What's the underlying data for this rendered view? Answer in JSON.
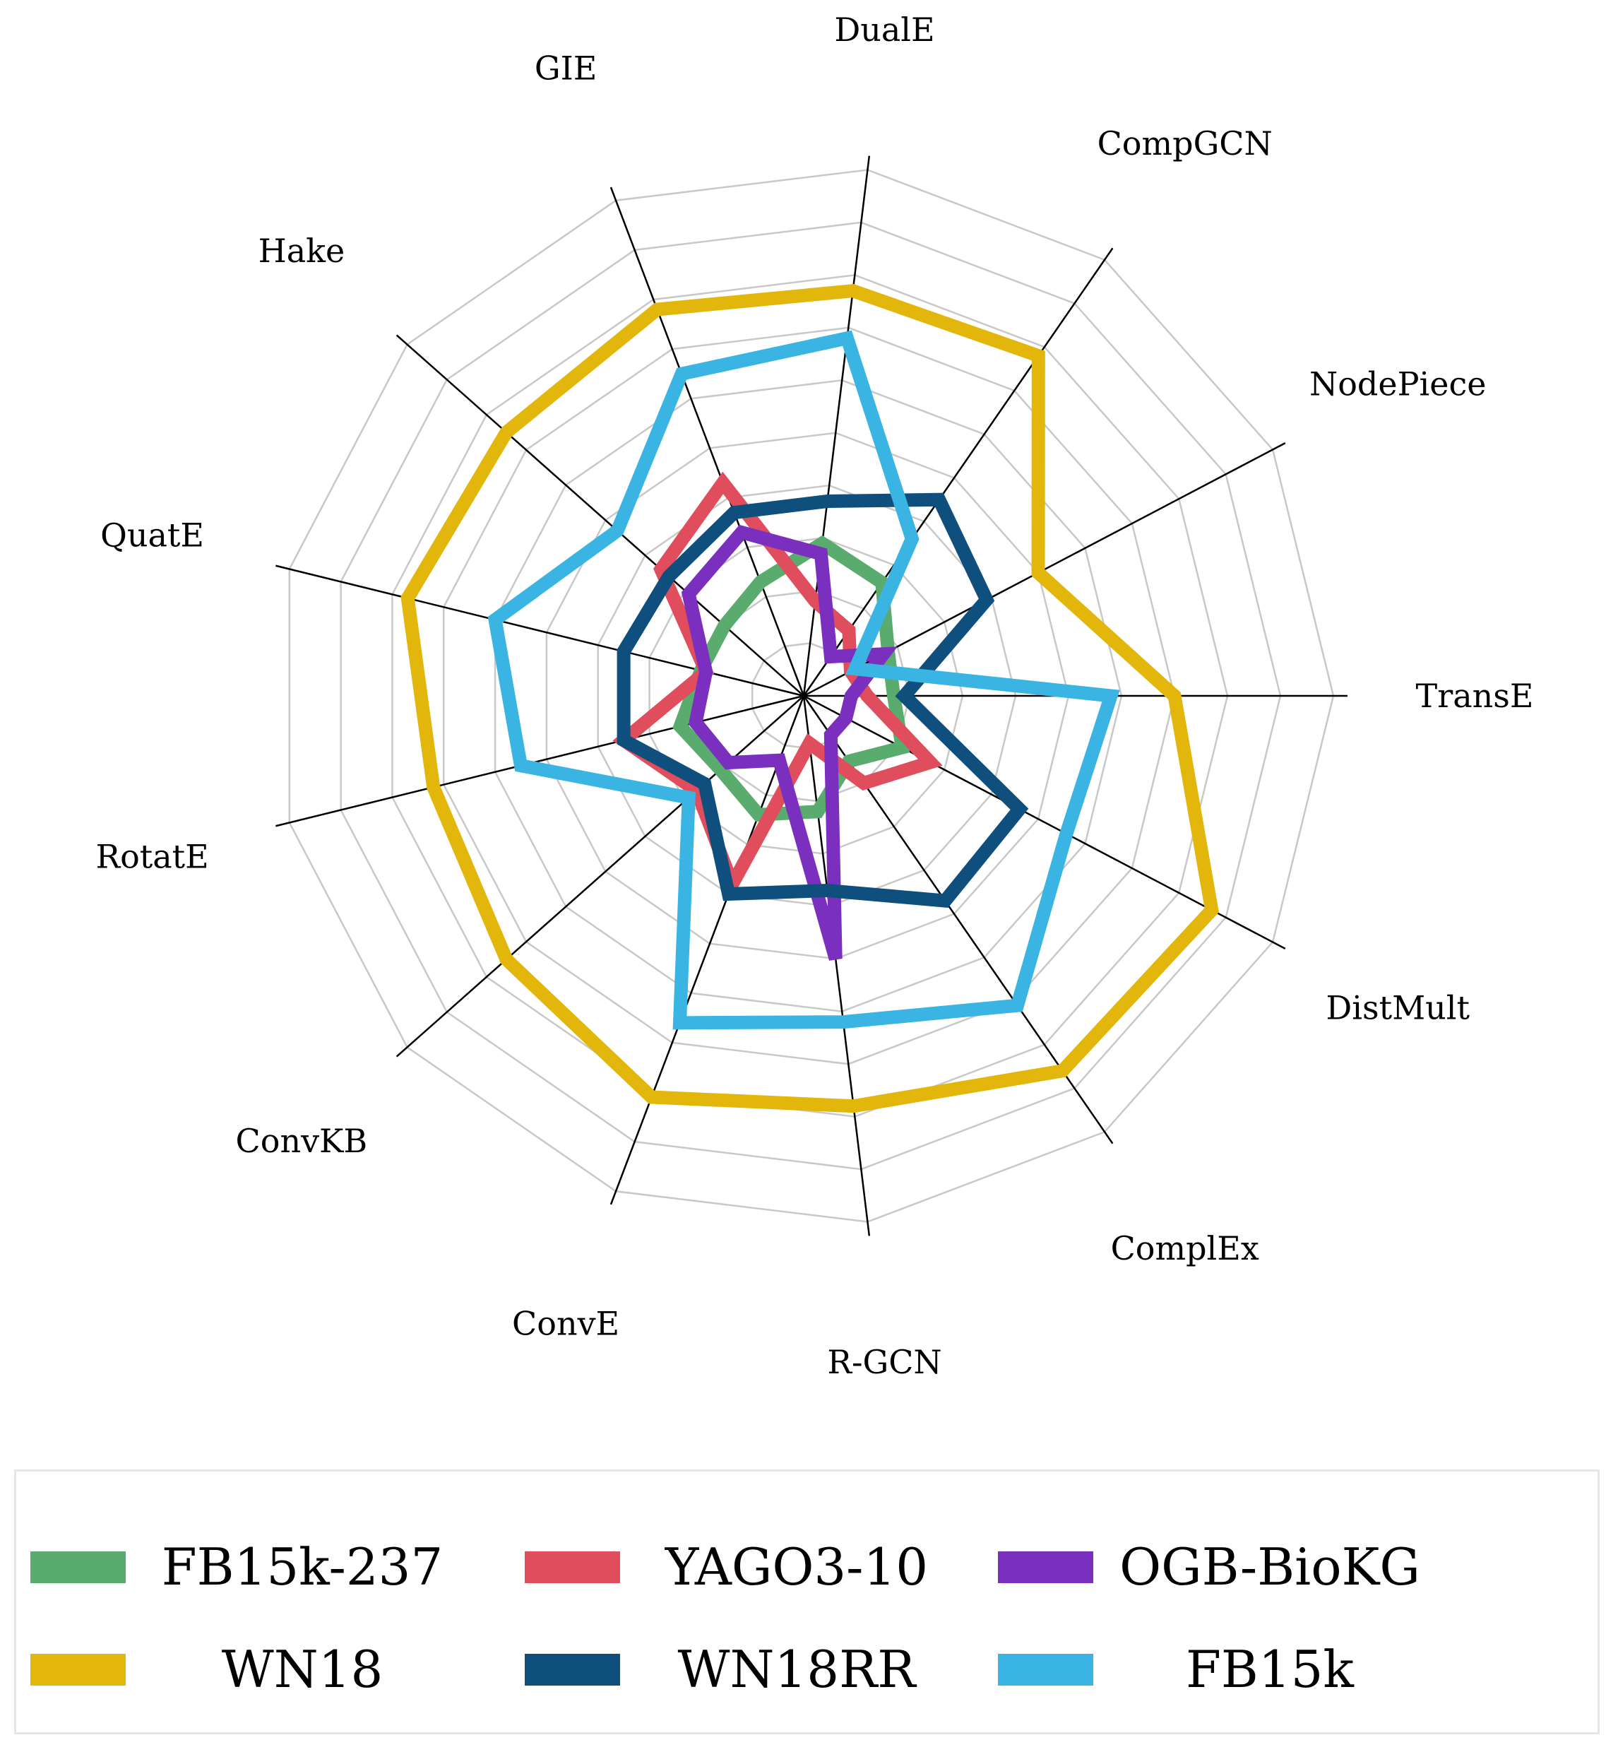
{
  "chart_data": {
    "type": "radar",
    "categories": [
      "TransE",
      "DistMult",
      "ComplEx",
      "R-GCN",
      "ConvE",
      "ConvKB",
      "RotatE",
      "QuatE",
      "Hake",
      "GIE",
      "DualE",
      "CompGCN",
      "NodePiece"
    ],
    "rlim": [
      0,
      10
    ],
    "grid": true,
    "legend_position": "bottom",
    "series": [
      {
        "name": "FB15k-237",
        "color": "#5aab6e",
        "values": [
          1.7,
          2.1,
          1.5,
          2.2,
          2.4,
          2.1,
          2.4,
          2.0,
          2.0,
          2.3,
          2.9,
          2.6,
          1.8
        ]
      },
      {
        "name": "YAGO3-10",
        "color": "#e04d5c",
        "values": [
          1.2,
          2.7,
          2.0,
          0.9,
          3.8,
          2.7,
          3.5,
          1.9,
          3.6,
          4.3,
          1.8,
          1.5,
          1.0
        ]
      },
      {
        "name": "OGB-BioKG",
        "color": "#7b2fbf",
        "values": [
          0.9,
          0.9,
          0.9,
          5.0,
          1.3,
          1.9,
          2.1,
          1.9,
          2.9,
          3.3,
          2.7,
          0.9,
          1.7
        ]
      },
      {
        "name": "WN18",
        "color": "#e2b60a",
        "values": [
          7.0,
          8.7,
          8.6,
          7.8,
          8.1,
          7.5,
          7.2,
          7.7,
          7.5,
          7.8,
          7.7,
          7.8,
          5.0
        ]
      },
      {
        "name": "WN18RR",
        "color": "#0f4f7d",
        "values": [
          1.9,
          4.6,
          4.7,
          3.7,
          4.0,
          2.5,
          3.5,
          3.5,
          3.4,
          3.7,
          3.7,
          4.5,
          3.9
        ]
      },
      {
        "name": "FB15k",
        "color": "#3ab5e3",
        "values": [
          5.8,
          5.6,
          7.1,
          6.2,
          6.6,
          2.9,
          5.5,
          6.0,
          4.7,
          6.5,
          6.8,
          3.6,
          1.1
        ]
      }
    ]
  }
}
